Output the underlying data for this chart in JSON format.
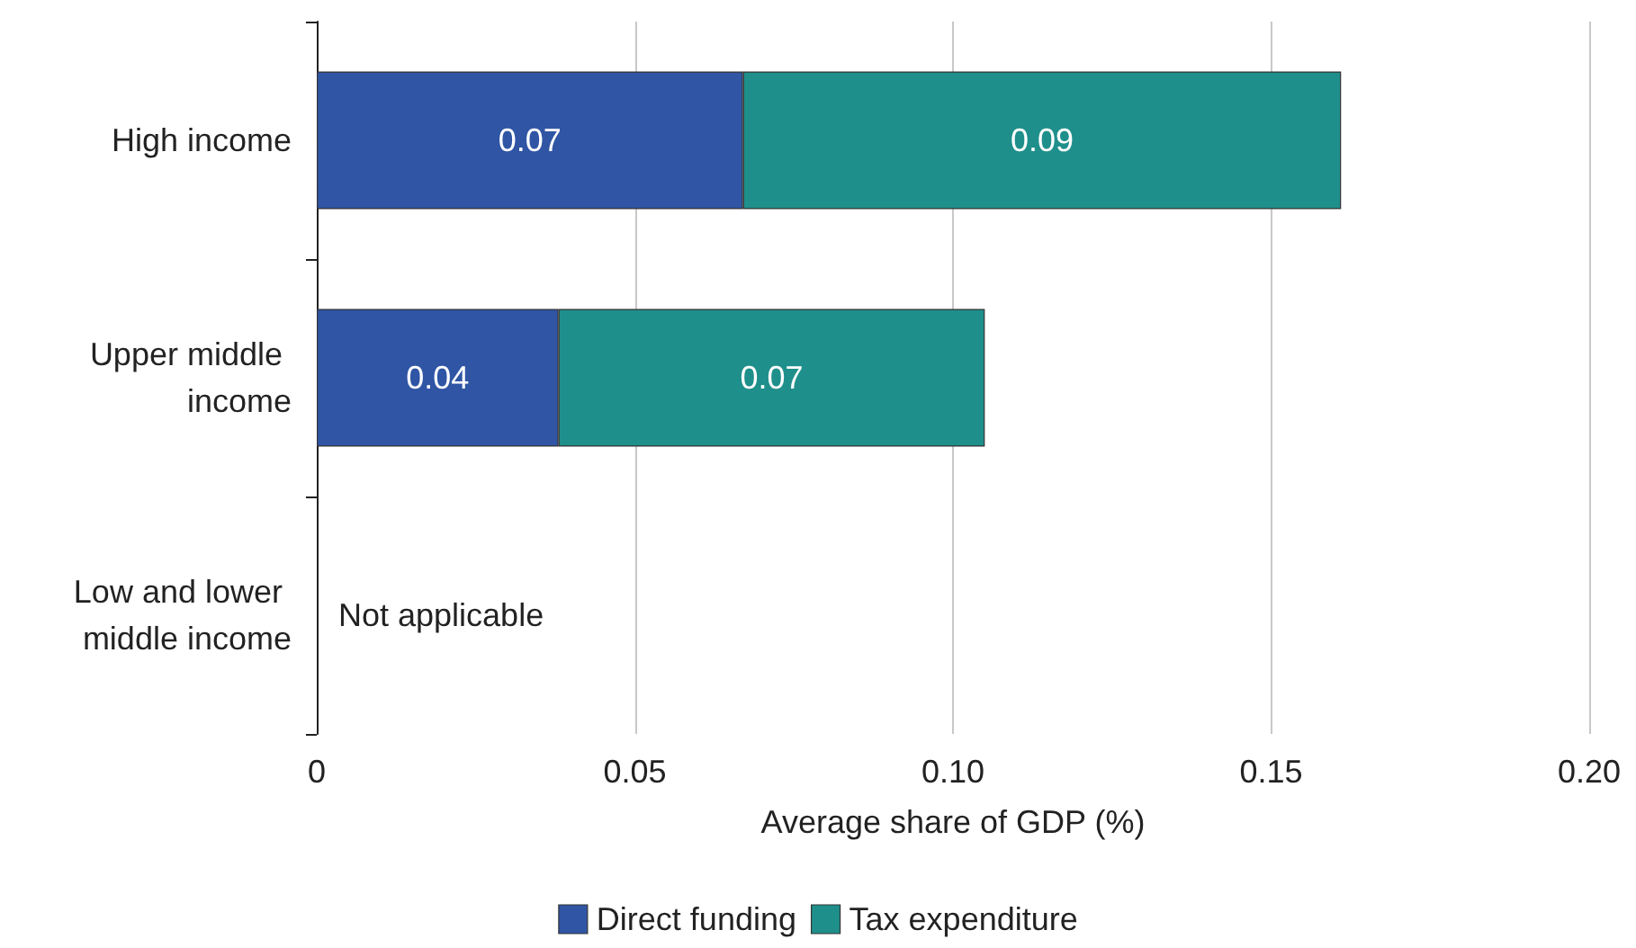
{
  "chart_data": {
    "type": "bar",
    "orientation": "horizontal",
    "stacked": true,
    "xlabel": "Average share of GDP (%)",
    "categories": [
      "High income",
      "Upper middle income",
      "Low and lower middle income"
    ],
    "series": [
      {
        "name": "Direct funding",
        "color": "#2f55a4",
        "values": [
          0.067,
          0.038,
          null
        ],
        "value_labels": [
          "0.07",
          "0.04",
          null
        ]
      },
      {
        "name": "Tax expenditure",
        "color": "#1f8f8b",
        "values": [
          0.094,
          0.067,
          null
        ],
        "value_labels": [
          "0.09",
          "0.07",
          null
        ]
      }
    ],
    "xlim": [
      0,
      0.2
    ],
    "xticks": [
      0,
      0.05,
      {
        "value": 0.1,
        "label": "0.10"
      },
      0.15,
      {
        "value": 0.2,
        "label": "0.20"
      }
    ],
    "grid": "x",
    "legend": "bottom",
    "annotations": [
      "Not applicable"
    ]
  }
}
